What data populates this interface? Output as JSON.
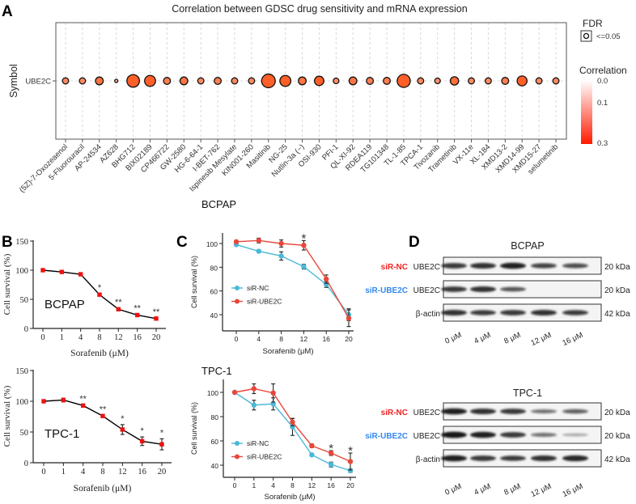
{
  "panel_letters": [
    "A",
    "B",
    "C",
    "D"
  ],
  "chart_data": [
    {
      "id": "A",
      "type": "scatter",
      "title": "Correlation between GDSC drug sensitivity and mRNA expression",
      "ylabel": "Symbol",
      "y_categories": [
        "UBE2C"
      ],
      "categories": [
        "(5Z)-7-Oxozeaenol",
        "5-Fluorouracil",
        "AP-24534",
        "AZ628",
        "BHG712",
        "BIX02189",
        "CP466722",
        "GW-2580",
        "HG-6-64-1",
        "I-BET-762",
        "Ispinesib Mesylate",
        "KIN001-260",
        "Masitinib",
        "NG-25",
        "Nutlin-3a (−)",
        "OSI-930",
        "PFI-1",
        "QL-XI-92",
        "RDEA119",
        "TG101348",
        "TL-1-85",
        "TPCA-1",
        "Tivozanib",
        "Trametinib",
        "VX-11e",
        "XL-184",
        "XMD13-2",
        "XMD14-99",
        "XMD15-27",
        "selumetinib"
      ],
      "correlation": [
        0.07,
        0.07,
        0.1,
        0.015,
        0.19,
        0.16,
        0.085,
        0.1,
        0.07,
        0.085,
        0.07,
        0.07,
        0.21,
        0.16,
        0.1,
        0.13,
        0.06,
        0.1,
        0.085,
        0.085,
        0.2,
        0.07,
        0.06,
        0.11,
        0.07,
        0.07,
        0.085,
        0.14,
        0.07,
        0.07
      ],
      "grid": true,
      "legend": {
        "fdr_title": "FDR",
        "fdr_item": "<=0.05",
        "color_title": "Correlation",
        "color_ticks": [
          "0.0",
          "0.1",
          "0.3"
        ],
        "color_low": "#ffffff",
        "color_high": "#ff1a00",
        "placement": "right"
      }
    },
    {
      "id": "B-BCPAP",
      "type": "line",
      "label": "BCPAP",
      "xlabel": "Sorafenib (μM)",
      "ylabel": "Cell survival (%)",
      "categories": [
        "0",
        "1",
        "4",
        "8",
        "12",
        "16",
        "20"
      ],
      "yticks": [
        "0",
        "50",
        "100",
        "150"
      ],
      "ylim": [
        0,
        150
      ],
      "series": [
        {
          "values": [
            100,
            97,
            93,
            58,
            33,
            23,
            17
          ],
          "errors": [
            0,
            0,
            0,
            0,
            0,
            0,
            0
          ],
          "color": "#000000",
          "marker_color": "#ee1111"
        }
      ],
      "significance": [
        "",
        "",
        "",
        "*",
        "**",
        "**",
        "**"
      ]
    },
    {
      "id": "B-TPC1",
      "type": "line",
      "label": "TPC-1",
      "xlabel": "Sorafenib (μM)",
      "ylabel": "Cell survival (%)",
      "categories": [
        "0",
        "1",
        "4",
        "8",
        "12",
        "16",
        "20"
      ],
      "yticks": [
        "0",
        "50",
        "100",
        "150"
      ],
      "ylim": [
        0,
        150
      ],
      "series": [
        {
          "values": [
            100,
            102,
            93,
            76,
            54,
            35,
            30
          ],
          "errors": [
            0,
            3,
            1,
            1,
            8,
            7,
            9
          ],
          "color": "#000000",
          "marker_color": "#ee1111"
        }
      ],
      "significance": [
        "",
        "",
        "**",
        "**",
        "*",
        "*",
        "*"
      ]
    },
    {
      "id": "C-BCPAP",
      "type": "line",
      "title": "BCPAP",
      "xlabel": "Sorafenib (μM)",
      "ylabel": "Cell survival (%)",
      "categories": [
        "0",
        "4",
        "8",
        "12",
        "16",
        "20"
      ],
      "yticks": [
        "40",
        "60",
        "80",
        "100"
      ],
      "series": [
        {
          "name": "siR-NC",
          "values": [
            99,
            93.5,
            89.5,
            80.5,
            65.5,
            40
          ],
          "errors": [
            0.5,
            1,
            3.5,
            2,
            2.5,
            5
          ],
          "color": "#4ab8d8"
        },
        {
          "name": "siR-UBE2C",
          "values": [
            101.5,
            102.5,
            100,
            98.5,
            70,
            37
          ],
          "errors": [
            0.5,
            2,
            3,
            4,
            3.5,
            7
          ],
          "color": "#e8473a"
        }
      ],
      "significance": [
        "",
        "",
        "",
        "*",
        "",
        ""
      ],
      "legend_placement": "left"
    },
    {
      "id": "C-TPC1",
      "type": "line",
      "title": "TPC-1",
      "xlabel": "Sorafenib (μM)",
      "ylabel": "Cell survival (%)",
      "categories": [
        "0",
        "1",
        "4",
        "8",
        "12",
        "16",
        "20"
      ],
      "yticks": [
        "40",
        "60",
        "80",
        "100"
      ],
      "series": [
        {
          "name": "siR-NC",
          "values": [
            100,
            89.5,
            90.5,
            71.5,
            48.5,
            40.5,
            35.5
          ],
          "errors": [
            0,
            4,
            5,
            7,
            1,
            2,
            1.5
          ],
          "color": "#4ab8d8"
        },
        {
          "name": "siR-UBE2C",
          "values": [
            100,
            103,
            99.5,
            75.5,
            56,
            50,
            43
          ],
          "errors": [
            0,
            4,
            7.5,
            3,
            1.5,
            2,
            7
          ],
          "color": "#e8473a"
        }
      ],
      "significance": [
        "",
        "",
        "",
        "",
        "",
        "*",
        "*"
      ],
      "legend_placement": "left"
    }
  ],
  "western_blots": [
    {
      "title": "BCPAP",
      "lanes": [
        "0 μM",
        "4 μM",
        "8 μM",
        "12 μM",
        "16 μM"
      ],
      "rows": [
        {
          "group": "siR-NC",
          "group_color": "#ee2222",
          "protein": "UBE2C",
          "size": "20 kDa",
          "intensity": [
            0.8,
            0.85,
            0.95,
            0.7,
            0.65
          ]
        },
        {
          "group": "siR-UBE2C",
          "group_color": "#3388ee",
          "protein": "UBE2C",
          "size": "20 kDa",
          "intensity": [
            0.8,
            0.85,
            0.6,
            0,
            0
          ]
        },
        {
          "group": "",
          "group_color": "#000000",
          "protein": "β-actin",
          "size": "42 kDa",
          "intensity": [
            0.85,
            0.75,
            0.8,
            0.85,
            0.75
          ]
        }
      ]
    },
    {
      "title": "TPC-1",
      "lanes": [
        "0 μM",
        "4 μM",
        "8 μM",
        "12 μM",
        "16 μM"
      ],
      "rows": [
        {
          "group": "siR-NC",
          "group_color": "#ee2222",
          "protein": "UBE2C",
          "size": "20 kDa",
          "intensity": [
            0.95,
            0.85,
            0.8,
            0.45,
            0.55
          ]
        },
        {
          "group": "siR-UBE2C",
          "group_color": "#3388ee",
          "protein": "UBE2C",
          "size": "20 kDa",
          "intensity": [
            1,
            0.95,
            0.8,
            0.45,
            0.15
          ]
        },
        {
          "group": "",
          "group_color": "#000000",
          "protein": "β-actin",
          "size": "42 kDa",
          "intensity": [
            0.95,
            0.8,
            0.75,
            0.85,
            0.9
          ]
        }
      ]
    }
  ]
}
